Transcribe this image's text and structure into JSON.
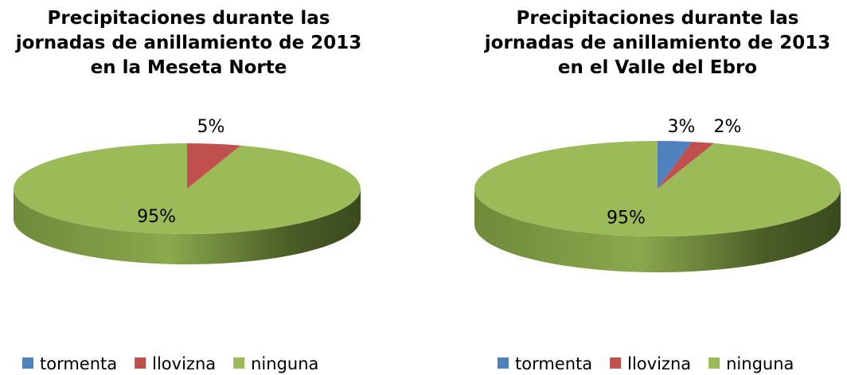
{
  "chart_data": [
    {
      "type": "pie",
      "title": [
        "Precipitaciones durante las",
        "jornadas de anillamiento de 2013",
        "en la Meseta Norte"
      ],
      "categories": [
        "tormenta",
        "llovizna",
        "ninguna"
      ],
      "values": [
        0,
        5,
        95
      ],
      "value_labels": [
        null,
        "5%",
        "95%"
      ],
      "colors": [
        "#4f81bd",
        "#c0504d",
        "#9bbb59"
      ],
      "legend": "bottom"
    },
    {
      "type": "pie",
      "title": [
        "Precipitaciones durante las",
        "jornadas de anillamiento de 2013",
        "en el Valle del Ebro"
      ],
      "categories": [
        "tormenta",
        "llovizna",
        "ninguna"
      ],
      "values": [
        3,
        2,
        95
      ],
      "value_labels": [
        "3%",
        "2%",
        "95%"
      ],
      "colors": [
        "#4f81bd",
        "#c0504d",
        "#9bbb59"
      ],
      "legend": "bottom"
    }
  ]
}
